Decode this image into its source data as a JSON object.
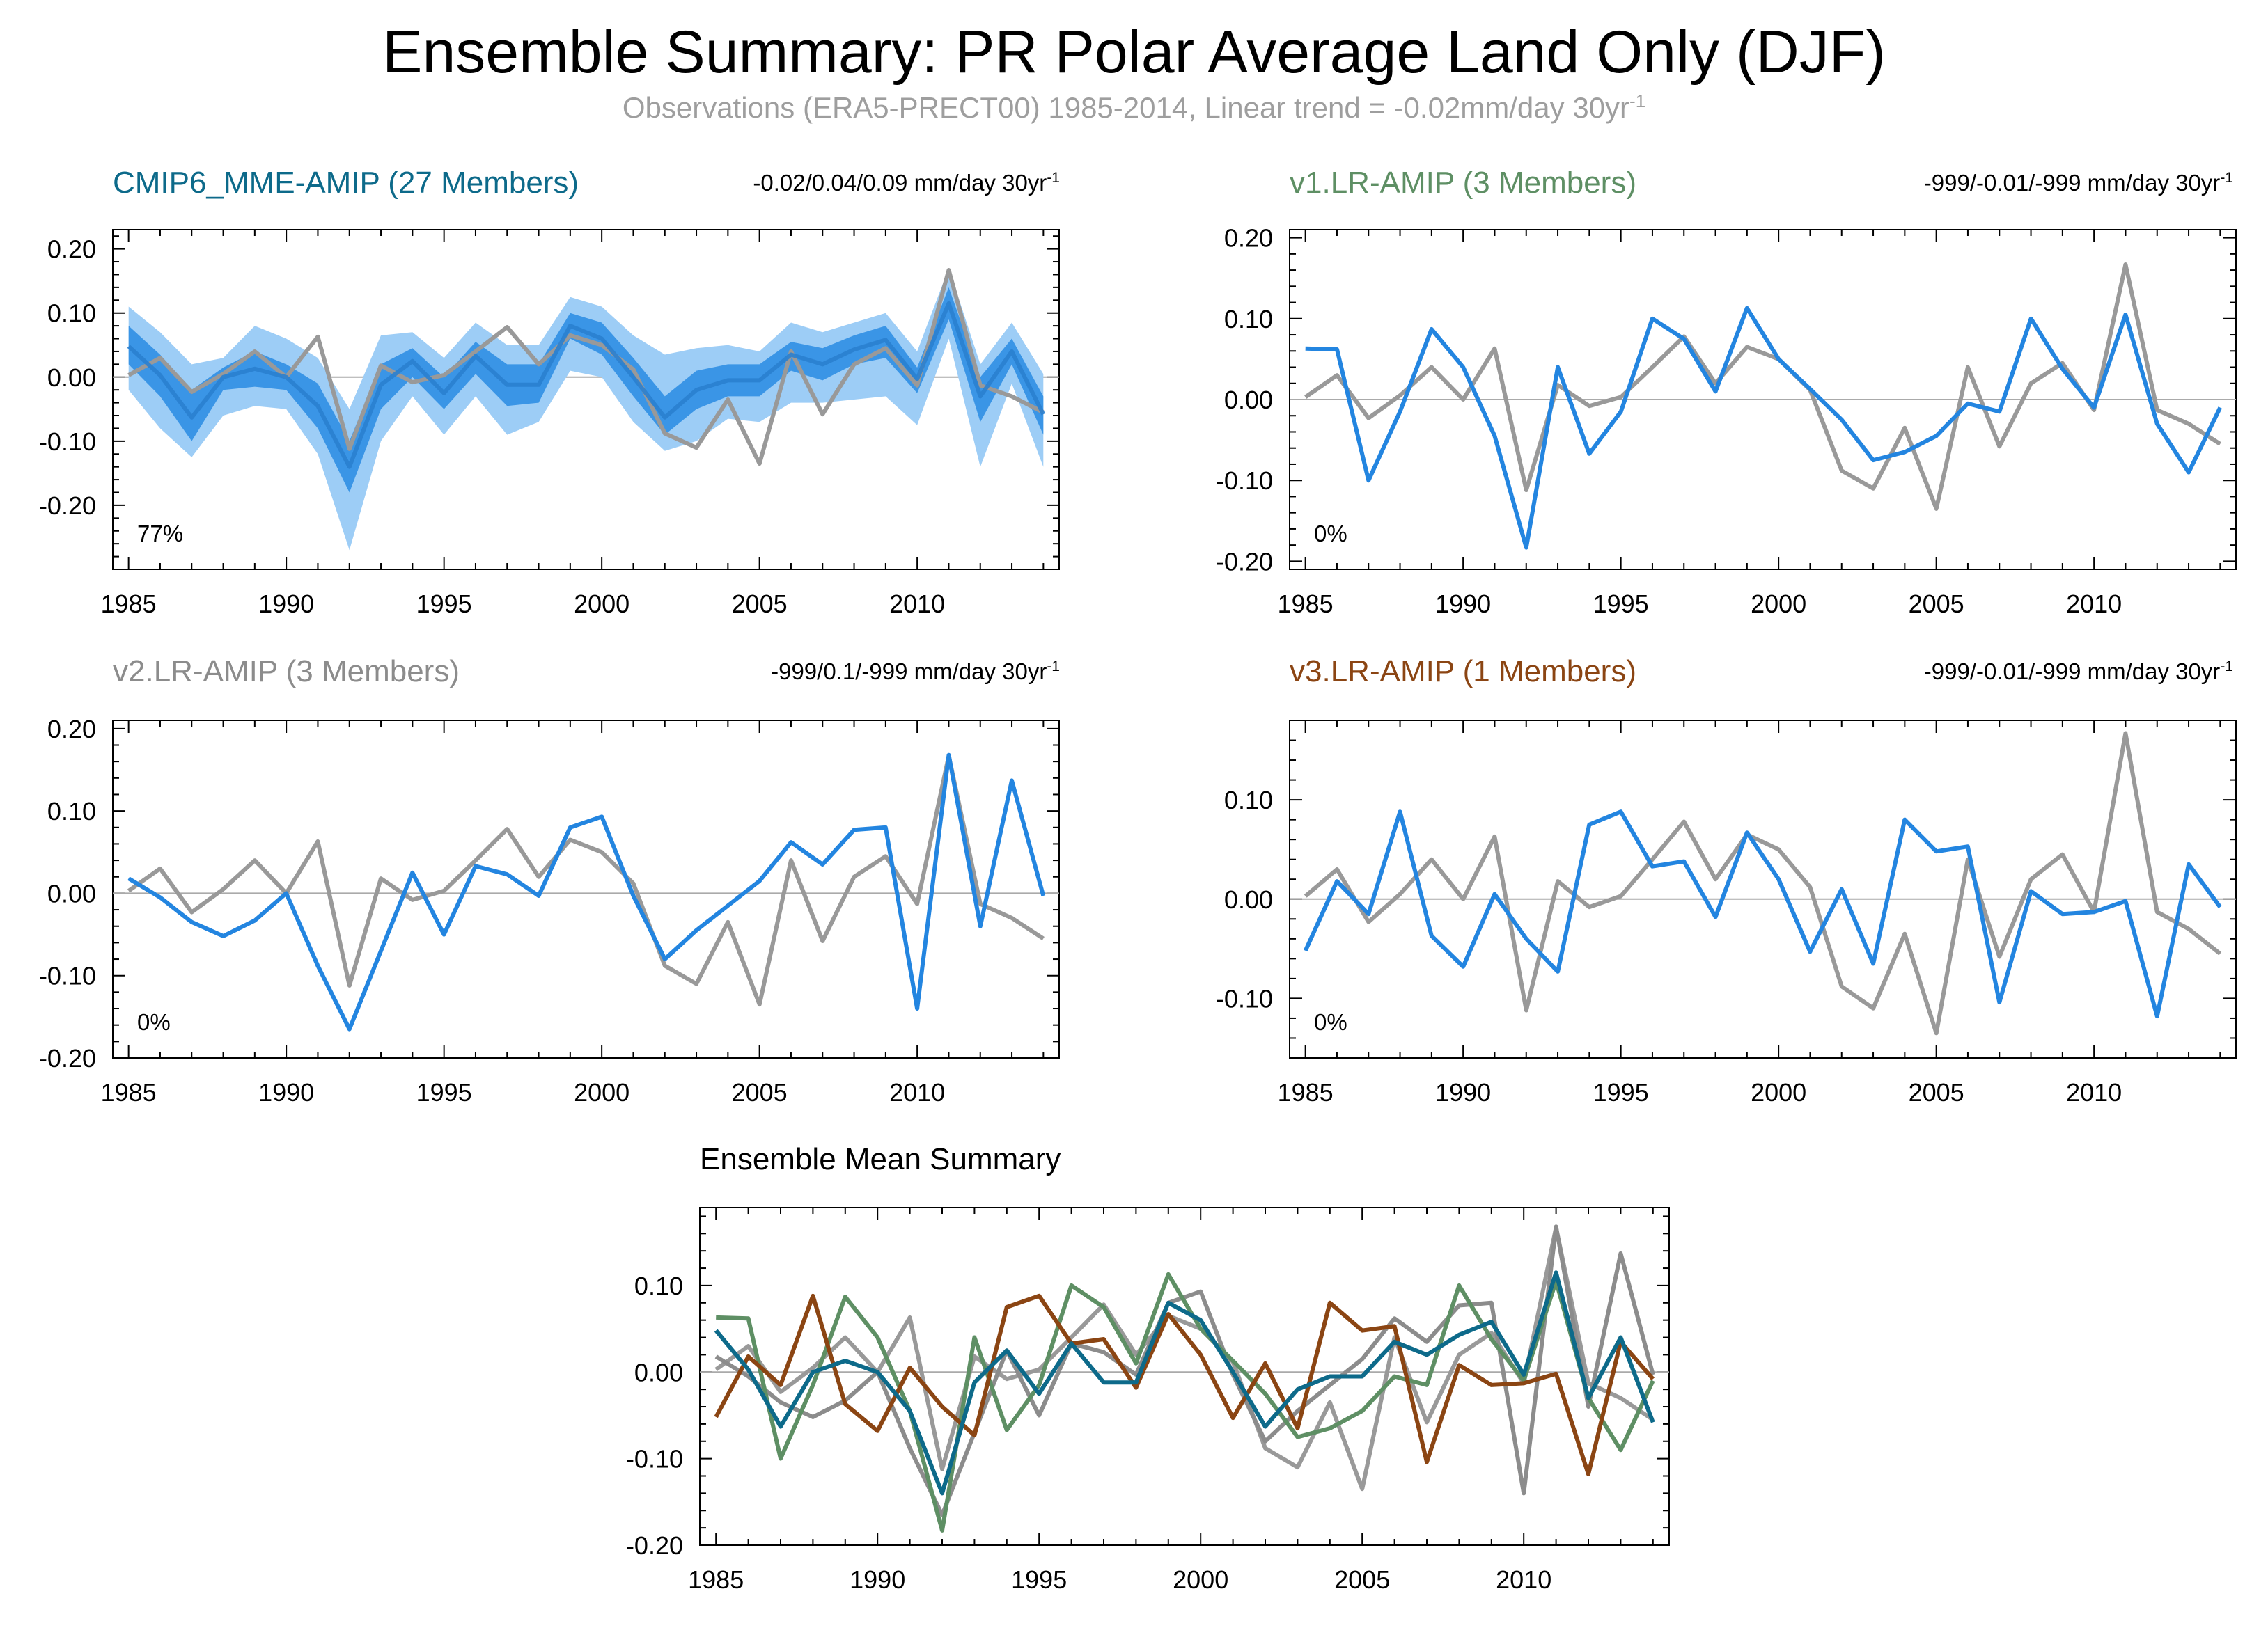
{
  "title": "Ensemble Summary: PR Polar Average Land Only (DJF)",
  "subtitle_main": "Observations (ERA5-PRECT00) 1985-2014, Linear trend = -0.02mm/day 30yr",
  "subtitle_sup": "-1",
  "colors": {
    "obs": "#999999",
    "model": "#2385e0",
    "band_outer": "#9dcdf6",
    "band_inner": "#3a95e6",
    "cmip6": "#0d6a8a",
    "v1": "#5e8f64",
    "v2": "#8c8c8c",
    "v3": "#8b4513"
  },
  "bottom_title": "Ensemble Mean Summary",
  "chart_data": [
    {
      "type": "line",
      "panel": "cmip6",
      "title": "CMIP6_MME-AMIP (27 Members)",
      "title_color": "#0d6a8a",
      "trend_label": "-0.02/0.04/0.09 mm/day 30yr",
      "trend_sup": "-1",
      "percent_label": "77%",
      "xlim": [
        1984.5,
        2014.5
      ],
      "ylim": [
        -0.3,
        0.23
      ],
      "yticks": [
        -0.2,
        -0.1,
        0.0,
        0.1,
        0.2
      ],
      "ytick_labels": [
        "-0.20",
        "-0.10",
        "0.00",
        "0.10",
        "0.20"
      ],
      "xticks": [
        1985,
        1990,
        1995,
        2000,
        2005,
        2010
      ],
      "x": [
        1985,
        1986,
        1987,
        1988,
        1989,
        1990,
        1991,
        1992,
        1993,
        1994,
        1995,
        1996,
        1997,
        1998,
        1999,
        2000,
        2001,
        2002,
        2003,
        2004,
        2005,
        2006,
        2007,
        2008,
        2009,
        2010,
        2011,
        2012,
        2013,
        2014
      ],
      "series": [
        {
          "name": "obs",
          "values": [
            0.003,
            0.03,
            -0.023,
            0.005,
            0.04,
            0.0,
            0.063,
            -0.112,
            0.018,
            -0.008,
            0.003,
            0.04,
            0.078,
            0.02,
            0.065,
            0.05,
            0.012,
            -0.088,
            -0.11,
            -0.035,
            -0.135,
            0.04,
            -0.058,
            0.02,
            0.045,
            -0.013,
            0.167,
            -0.013,
            -0.03,
            -0.055
          ]
        },
        {
          "name": "mean",
          "values": [
            0.048,
            0.003,
            -0.063,
            0.0,
            0.013,
            0.0,
            -0.045,
            -0.14,
            -0.012,
            0.025,
            -0.025,
            0.033,
            -0.012,
            -0.012,
            0.08,
            0.06,
            0.0,
            -0.063,
            -0.02,
            -0.005,
            -0.005,
            0.035,
            0.02,
            0.043,
            0.058,
            -0.003,
            0.115,
            -0.03,
            0.04,
            -0.058
          ]
        },
        {
          "name": "band_outer_upper",
          "values": [
            0.11,
            0.07,
            0.02,
            0.03,
            0.08,
            0.06,
            0.03,
            -0.05,
            0.065,
            0.07,
            0.03,
            0.085,
            0.05,
            0.05,
            0.125,
            0.11,
            0.065,
            0.035,
            0.045,
            0.05,
            0.04,
            0.085,
            0.07,
            0.085,
            0.1,
            0.04,
            0.17,
            0.02,
            0.085,
            0.005
          ]
        },
        {
          "name": "band_inner_upper",
          "values": [
            0.08,
            0.035,
            -0.02,
            0.015,
            0.04,
            0.02,
            -0.01,
            -0.1,
            0.02,
            0.045,
            0.0,
            0.055,
            0.02,
            0.02,
            0.1,
            0.085,
            0.03,
            -0.03,
            0.01,
            0.02,
            0.02,
            0.055,
            0.045,
            0.065,
            0.08,
            0.015,
            0.14,
            0.0,
            0.06,
            -0.03
          ]
        },
        {
          "name": "band_inner_lower",
          "values": [
            0.02,
            -0.03,
            -0.1,
            -0.02,
            -0.015,
            -0.02,
            -0.08,
            -0.18,
            -0.05,
            0.0,
            -0.05,
            0.005,
            -0.045,
            -0.04,
            0.06,
            0.035,
            -0.03,
            -0.09,
            -0.05,
            -0.03,
            -0.03,
            0.01,
            -0.005,
            0.02,
            0.03,
            -0.025,
            0.09,
            -0.07,
            0.02,
            -0.09
          ]
        },
        {
          "name": "band_outer_lower",
          "values": [
            -0.02,
            -0.08,
            -0.125,
            -0.06,
            -0.045,
            -0.05,
            -0.12,
            -0.27,
            -0.1,
            -0.03,
            -0.09,
            -0.03,
            -0.09,
            -0.07,
            0.01,
            0.0,
            -0.07,
            -0.115,
            -0.1,
            -0.065,
            -0.07,
            -0.04,
            -0.04,
            -0.035,
            -0.03,
            -0.075,
            0.06,
            -0.14,
            -0.01,
            -0.14
          ]
        }
      ]
    },
    {
      "type": "line",
      "panel": "v1",
      "title": "v1.LR-AMIP (3 Members)",
      "title_color": "#5e8f64",
      "trend_label": "-999/-0.01/-999 mm/day 30yr",
      "trend_sup": "-1",
      "percent_label": "0%",
      "xlim": [
        1984.5,
        2014.5
      ],
      "ylim": [
        -0.21,
        0.21
      ],
      "yticks": [
        -0.2,
        -0.1,
        0.0,
        0.1,
        0.2
      ],
      "ytick_labels": [
        "-0.20",
        "-0.10",
        "0.00",
        "0.10",
        "0.20"
      ],
      "xticks": [
        1985,
        1990,
        1995,
        2000,
        2005,
        2010
      ],
      "x": [
        1985,
        1986,
        1987,
        1988,
        1989,
        1990,
        1991,
        1992,
        1993,
        1994,
        1995,
        1996,
        1997,
        1998,
        1999,
        2000,
        2001,
        2002,
        2003,
        2004,
        2005,
        2006,
        2007,
        2008,
        2009,
        2010,
        2011,
        2012,
        2013,
        2014
      ],
      "series": [
        {
          "name": "obs",
          "values": [
            0.003,
            0.03,
            -0.023,
            0.005,
            0.04,
            0.0,
            0.063,
            -0.112,
            0.018,
            -0.008,
            0.003,
            0.04,
            0.078,
            0.02,
            0.065,
            0.05,
            0.012,
            -0.088,
            -0.11,
            -0.035,
            -0.135,
            0.04,
            -0.058,
            0.02,
            0.045,
            -0.013,
            0.167,
            -0.013,
            -0.03,
            -0.055
          ]
        },
        {
          "name": "model",
          "values": [
            0.063,
            0.062,
            -0.1,
            -0.015,
            0.087,
            0.04,
            -0.045,
            -0.183,
            0.04,
            -0.067,
            -0.015,
            0.1,
            0.075,
            0.01,
            0.113,
            0.05,
            0.013,
            -0.025,
            -0.075,
            -0.065,
            -0.045,
            -0.005,
            -0.015,
            0.1,
            0.038,
            -0.01,
            0.105,
            -0.03,
            -0.09,
            -0.01
          ]
        }
      ]
    },
    {
      "type": "line",
      "panel": "v2",
      "title": "v2.LR-AMIP (3 Members)",
      "title_color": "#8c8c8c",
      "trend_label": "-999/0.1/-999 mm/day 30yr",
      "trend_sup": "-1",
      "percent_label": "0%",
      "xlim": [
        1984.5,
        2014.5
      ],
      "ylim": [
        -0.2,
        0.21
      ],
      "yticks": [
        -0.2,
        -0.1,
        0.0,
        0.1,
        0.2
      ],
      "ytick_labels": [
        "-0.20",
        "-0.10",
        "0.00",
        "0.10",
        "0.20"
      ],
      "xticks": [
        1985,
        1990,
        1995,
        2000,
        2005,
        2010
      ],
      "x": [
        1985,
        1986,
        1987,
        1988,
        1989,
        1990,
        1991,
        1992,
        1993,
        1994,
        1995,
        1996,
        1997,
        1998,
        1999,
        2000,
        2001,
        2002,
        2003,
        2004,
        2005,
        2006,
        2007,
        2008,
        2009,
        2010,
        2011,
        2012,
        2013,
        2014
      ],
      "series": [
        {
          "name": "obs",
          "values": [
            0.003,
            0.03,
            -0.023,
            0.005,
            0.04,
            0.0,
            0.063,
            -0.112,
            0.018,
            -0.008,
            0.003,
            0.04,
            0.078,
            0.02,
            0.065,
            0.05,
            0.012,
            -0.088,
            -0.11,
            -0.035,
            -0.135,
            0.04,
            -0.058,
            0.02,
            0.045,
            -0.013,
            0.167,
            -0.013,
            -0.03,
            -0.055
          ]
        },
        {
          "name": "model",
          "values": [
            0.018,
            -0.005,
            -0.035,
            -0.052,
            -0.033,
            0.0,
            -0.088,
            -0.165,
            -0.07,
            0.025,
            -0.05,
            0.033,
            0.023,
            -0.003,
            0.08,
            0.093,
            -0.003,
            -0.08,
            -0.045,
            -0.015,
            0.015,
            0.062,
            0.035,
            0.077,
            0.08,
            -0.14,
            0.168,
            -0.04,
            0.137,
            -0.003
          ]
        }
      ]
    },
    {
      "type": "line",
      "panel": "v3",
      "title": "v3.LR-AMIP (1 Members)",
      "title_color": "#8b4513",
      "trend_label": "-999/-0.01/-999 mm/day 30yr",
      "trend_sup": "-1",
      "percent_label": "0%",
      "xlim": [
        1984.5,
        2014.5
      ],
      "ylim": [
        -0.16,
        0.18
      ],
      "yticks": [
        -0.1,
        0.0,
        0.1
      ],
      "ytick_labels": [
        "-0.10",
        "0.00",
        "0.10"
      ],
      "xticks": [
        1985,
        1990,
        1995,
        2000,
        2005,
        2010
      ],
      "x": [
        1985,
        1986,
        1987,
        1988,
        1989,
        1990,
        1991,
        1992,
        1993,
        1994,
        1995,
        1996,
        1997,
        1998,
        1999,
        2000,
        2001,
        2002,
        2003,
        2004,
        2005,
        2006,
        2007,
        2008,
        2009,
        2010,
        2011,
        2012,
        2013,
        2014
      ],
      "series": [
        {
          "name": "obs",
          "values": [
            0.003,
            0.03,
            -0.023,
            0.005,
            0.04,
            0.0,
            0.063,
            -0.112,
            0.018,
            -0.008,
            0.003,
            0.04,
            0.078,
            0.02,
            0.065,
            0.05,
            0.012,
            -0.088,
            -0.11,
            -0.035,
            -0.135,
            0.04,
            -0.058,
            0.02,
            0.045,
            -0.013,
            0.167,
            -0.013,
            -0.03,
            -0.055
          ]
        },
        {
          "name": "model",
          "values": [
            -0.052,
            0.018,
            -0.015,
            0.088,
            -0.037,
            -0.068,
            0.005,
            -0.04,
            -0.073,
            0.075,
            0.088,
            0.033,
            0.038,
            -0.018,
            0.067,
            0.02,
            -0.053,
            0.01,
            -0.065,
            0.08,
            0.048,
            0.053,
            -0.104,
            0.008,
            -0.015,
            -0.013,
            -0.002,
            -0.118,
            0.035,
            -0.008
          ]
        }
      ]
    },
    {
      "type": "line",
      "panel": "summary",
      "title": "Ensemble Mean Summary",
      "xlim": [
        1984.5,
        2014.5
      ],
      "ylim": [
        -0.2,
        0.19
      ],
      "yticks": [
        -0.2,
        -0.1,
        0.0,
        0.1
      ],
      "ytick_labels": [
        "-0.20",
        "-0.10",
        "0.00",
        "0.10"
      ],
      "xticks": [
        1985,
        1990,
        1995,
        2000,
        2005,
        2010
      ],
      "x": [
        1985,
        1986,
        1987,
        1988,
        1989,
        1990,
        1991,
        1992,
        1993,
        1994,
        1995,
        1996,
        1997,
        1998,
        1999,
        2000,
        2001,
        2002,
        2003,
        2004,
        2005,
        2006,
        2007,
        2008,
        2009,
        2010,
        2011,
        2012,
        2013,
        2014
      ],
      "series": [
        {
          "name": "obs",
          "values": [
            0.003,
            0.03,
            -0.023,
            0.005,
            0.04,
            0.0,
            0.063,
            -0.112,
            0.018,
            -0.008,
            0.003,
            0.04,
            0.078,
            0.02,
            0.065,
            0.05,
            0.012,
            -0.088,
            -0.11,
            -0.035,
            -0.135,
            0.04,
            -0.058,
            0.02,
            0.045,
            -0.013,
            0.167,
            -0.013,
            -0.03,
            -0.055
          ]
        },
        {
          "name": "v2.LR-AMIP",
          "values": [
            0.018,
            -0.005,
            -0.035,
            -0.052,
            -0.033,
            0.0,
            -0.088,
            -0.165,
            -0.07,
            0.025,
            -0.05,
            0.033,
            0.023,
            -0.003,
            0.08,
            0.093,
            -0.003,
            -0.08,
            -0.045,
            -0.015,
            0.015,
            0.062,
            0.035,
            0.077,
            0.08,
            -0.14,
            0.168,
            -0.04,
            0.137,
            -0.003
          ]
        },
        {
          "name": "v1.LR-AMIP",
          "values": [
            0.063,
            0.062,
            -0.1,
            -0.015,
            0.087,
            0.04,
            -0.045,
            -0.183,
            0.04,
            -0.067,
            -0.015,
            0.1,
            0.075,
            0.01,
            0.113,
            0.05,
            0.013,
            -0.025,
            -0.075,
            -0.065,
            -0.045,
            -0.005,
            -0.015,
            0.1,
            0.038,
            -0.01,
            0.105,
            -0.03,
            -0.09,
            -0.01
          ]
        },
        {
          "name": "v3.LR-AMIP",
          "values": [
            -0.052,
            0.018,
            -0.015,
            0.088,
            -0.037,
            -0.068,
            0.005,
            -0.04,
            -0.073,
            0.075,
            0.088,
            0.033,
            0.038,
            -0.018,
            0.067,
            0.02,
            -0.053,
            0.01,
            -0.065,
            0.08,
            0.048,
            0.053,
            -0.104,
            0.008,
            -0.015,
            -0.013,
            -0.002,
            -0.118,
            0.035,
            -0.008
          ]
        },
        {
          "name": "CMIP6_MME-AMIP",
          "values": [
            0.048,
            0.003,
            -0.063,
            0.0,
            0.013,
            0.0,
            -0.045,
            -0.14,
            -0.012,
            0.025,
            -0.025,
            0.033,
            -0.012,
            -0.012,
            0.08,
            0.06,
            0.0,
            -0.063,
            -0.02,
            -0.005,
            -0.005,
            0.035,
            0.02,
            0.043,
            0.058,
            -0.003,
            0.115,
            -0.03,
            0.04,
            -0.058
          ]
        }
      ]
    }
  ]
}
